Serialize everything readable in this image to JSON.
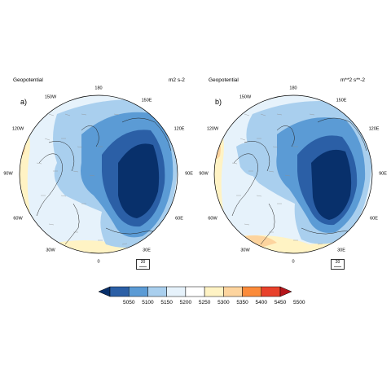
{
  "panels": [
    {
      "label": "a)",
      "title": "Geopotential",
      "units": "m2 s-2",
      "longitude_labels": [
        "180",
        "150E",
        "120E",
        "90E",
        "60E",
        "30E",
        "0",
        "30W",
        "60W",
        "90W",
        "120W",
        "150W"
      ],
      "vector_reference": "20"
    },
    {
      "label": "b)",
      "title": "Geopotential",
      "units": "m**2 s**-2",
      "longitude_labels": [
        "180",
        "150E",
        "120E",
        "90E",
        "60E",
        "30E",
        "0",
        "30W",
        "60W",
        "90W",
        "120W",
        "150W"
      ],
      "vector_reference": "20"
    }
  ],
  "colorbar": {
    "levels": [
      "5050",
      "5100",
      "5150",
      "5200",
      "5250",
      "5300",
      "5350",
      "5400",
      "5450",
      "5500"
    ],
    "colors": [
      "#08306b",
      "#2b5fa6",
      "#5b9bd5",
      "#a9cfee",
      "#e6f2fb",
      "#ffffff",
      "#fff3c4",
      "#fdd49e",
      "#fb8b3a",
      "#e8412b",
      "#b5151b"
    ]
  }
}
